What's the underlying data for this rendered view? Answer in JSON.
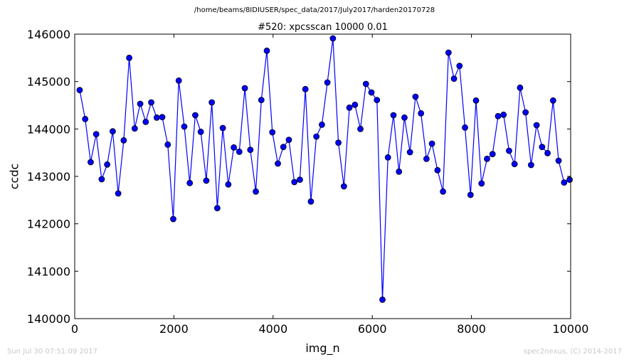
{
  "header": {
    "suptitle": "/home/beams/8IDIUSER/spec_data/2017/July2017/harden20170728"
  },
  "footer": {
    "left": "Sun Jul 30 07:51:09 2017",
    "right": "spec2nexus, (C) 2014-2017"
  },
  "colors": {
    "series": "#0000ff",
    "frame": "#000000"
  },
  "chart_data": {
    "type": "line",
    "title": "#520: xpcsscan 10000 0.01",
    "xlabel": "img_n",
    "ylabel": "ccdc",
    "xlim": [
      0,
      10000
    ],
    "ylim": [
      140000,
      146000
    ],
    "xticks": [
      0,
      2000,
      4000,
      6000,
      8000,
      10000
    ],
    "yticks": [
      140000,
      141000,
      142000,
      143000,
      144000,
      145000,
      146000
    ],
    "grid": false,
    "marker": "circle",
    "series": [
      {
        "x": [
          100,
          211,
          322,
          433,
          544,
          655,
          766,
          877,
          988,
          1099,
          1210,
          1321,
          1432,
          1543,
          1654,
          1765,
          1876,
          1987,
          2098,
          2209,
          2320,
          2431,
          2542,
          2653,
          2764,
          2875,
          2986,
          3097,
          3208,
          3319,
          3430,
          3541,
          3652,
          3763,
          3874,
          3985,
          4096,
          4207,
          4318,
          4429,
          4540,
          4651,
          4762,
          4873,
          4984,
          5095,
          5206,
          5317,
          5428,
          5539,
          5650,
          5761,
          5872,
          5983,
          6094,
          6205,
          6316,
          6427,
          6538,
          6649,
          6760,
          6871,
          6982,
          7093,
          7204,
          7315,
          7426,
          7537,
          7648,
          7759,
          7870,
          7981,
          8092,
          8203,
          8314,
          8425,
          8536,
          8647,
          8758,
          8869,
          8980,
          9091,
          9202,
          9313,
          9424,
          9535,
          9646,
          9757,
          9868,
          9979
        ],
        "y": [
          144820,
          144210,
          143300,
          143890,
          142940,
          143250,
          143950,
          142640,
          143760,
          145500,
          144010,
          144530,
          144150,
          144560,
          144240,
          144250,
          143670,
          142100,
          145020,
          144050,
          142860,
          144290,
          143940,
          142910,
          144560,
          142330,
          144020,
          142830,
          143610,
          143520,
          144860,
          143560,
          142680,
          144610,
          145650,
          143930,
          143270,
          143620,
          143770,
          142880,
          142930,
          144840,
          142470,
          143840,
          144090,
          144980,
          145910,
          143710,
          142790,
          144450,
          144510,
          144000,
          144950,
          144770,
          144610,
          140400,
          143400,
          144290,
          143100,
          144240,
          143510,
          144680,
          144330,
          143370,
          143690,
          143130,
          142680,
          145610,
          145060,
          145330,
          144030,
          142610,
          144600,
          142850,
          143370,
          143470,
          144270,
          144300,
          143540,
          143260,
          144870,
          144350,
          143240,
          144080,
          143620,
          143490,
          144600,
          143330,
          142870,
          142930
        ]
      }
    ]
  }
}
